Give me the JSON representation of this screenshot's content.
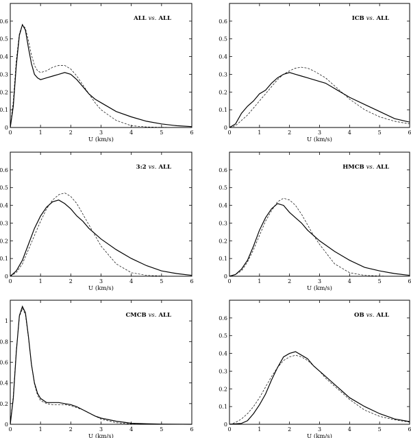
{
  "chart_data": [
    {
      "type": "line",
      "title_prefix": "ALL",
      "title_vs": "vs.",
      "title_suffix": "ALL",
      "xlabel": "U   (km/s)",
      "ylabel": "",
      "xlim": [
        0,
        6
      ],
      "ylim": [
        0,
        0.7
      ],
      "xticks": [
        "0",
        "1",
        "2",
        "3",
        "4",
        "5",
        "6"
      ],
      "yticks": [
        0,
        0.1,
        0.2,
        0.3,
        0.4,
        0.5,
        0.6
      ],
      "ytick_labels": [
        "0",
        "0.1",
        "0.2",
        "0.3",
        "0.4",
        "0.5",
        "0.6"
      ],
      "series": [
        {
          "style": "solid",
          "x": [
            0,
            0.1,
            0.2,
            0.3,
            0.4,
            0.5,
            0.6,
            0.7,
            0.8,
            0.9,
            1.0,
            1.2,
            1.4,
            1.6,
            1.8,
            2.0,
            2.2,
            2.4,
            2.6,
            2.8,
            3.0,
            3.5,
            4.0,
            4.5,
            5.0,
            5.5,
            6.0
          ],
          "y": [
            0,
            0.12,
            0.35,
            0.52,
            0.58,
            0.55,
            0.45,
            0.36,
            0.3,
            0.28,
            0.27,
            0.28,
            0.29,
            0.3,
            0.31,
            0.3,
            0.27,
            0.23,
            0.19,
            0.16,
            0.14,
            0.09,
            0.06,
            0.035,
            0.02,
            0.01,
            0.005
          ]
        },
        {
          "style": "dashed",
          "x": [
            0,
            0.1,
            0.2,
            0.3,
            0.4,
            0.5,
            0.6,
            0.7,
            0.8,
            0.9,
            1.0,
            1.2,
            1.4,
            1.6,
            1.8,
            2.0,
            2.2,
            2.4,
            2.6,
            2.8,
            3.0,
            3.5,
            4.0,
            4.5,
            5.0,
            5.5,
            6.0
          ],
          "y": [
            0,
            0.15,
            0.38,
            0.53,
            0.58,
            0.56,
            0.49,
            0.41,
            0.35,
            0.32,
            0.31,
            0.32,
            0.34,
            0.35,
            0.35,
            0.33,
            0.29,
            0.24,
            0.19,
            0.14,
            0.1,
            0.04,
            0.01,
            0.003,
            0.001,
            0,
            0
          ]
        }
      ]
    },
    {
      "type": "line",
      "title_prefix": "ICB",
      "title_vs": "vs.",
      "title_suffix": "ALL",
      "xlabel": "U   (km/s)",
      "ylabel": "",
      "xlim": [
        0,
        6
      ],
      "ylim": [
        0,
        0.7
      ],
      "xticks": [
        "0",
        "1",
        "2",
        "3",
        "4",
        "5",
        "6"
      ],
      "yticks": [
        0,
        0.1,
        0.2,
        0.3,
        0.4,
        0.5,
        0.6
      ],
      "ytick_labels": [
        "0",
        "0.1",
        "0.2",
        "0.3",
        "0.4",
        "0.5",
        "0.6"
      ],
      "series": [
        {
          "style": "solid",
          "x": [
            0,
            0.2,
            0.4,
            0.6,
            0.8,
            1.0,
            1.2,
            1.4,
            1.6,
            1.8,
            2.0,
            2.2,
            2.4,
            2.6,
            2.8,
            3.0,
            3.2,
            3.4,
            3.6,
            3.8,
            4.0,
            4.5,
            5.0,
            5.5,
            6.0
          ],
          "y": [
            0,
            0.02,
            0.08,
            0.12,
            0.15,
            0.19,
            0.21,
            0.25,
            0.28,
            0.3,
            0.31,
            0.3,
            0.29,
            0.28,
            0.27,
            0.26,
            0.25,
            0.23,
            0.21,
            0.19,
            0.17,
            0.13,
            0.09,
            0.05,
            0.03
          ]
        },
        {
          "style": "dashed",
          "x": [
            0,
            0.2,
            0.4,
            0.6,
            0.8,
            1.0,
            1.2,
            1.4,
            1.6,
            1.8,
            2.0,
            2.2,
            2.4,
            2.6,
            2.8,
            3.0,
            3.2,
            3.4,
            3.6,
            3.8,
            4.0,
            4.5,
            5.0,
            5.5,
            6.0
          ],
          "y": [
            0,
            0.01,
            0.04,
            0.07,
            0.11,
            0.15,
            0.19,
            0.23,
            0.27,
            0.3,
            0.32,
            0.335,
            0.34,
            0.335,
            0.32,
            0.3,
            0.28,
            0.25,
            0.22,
            0.19,
            0.16,
            0.1,
            0.06,
            0.035,
            0.02
          ]
        }
      ]
    },
    {
      "type": "line",
      "title_prefix": "3:2",
      "title_vs": "vs.",
      "title_suffix": "ALL",
      "xlabel": "U   (km/s)",
      "ylabel": "",
      "xlim": [
        0,
        6
      ],
      "ylim": [
        0,
        0.7
      ],
      "xticks": [
        "0",
        "1",
        "2",
        "3",
        "4",
        "5",
        "6"
      ],
      "yticks": [
        0,
        0.1,
        0.2,
        0.3,
        0.4,
        0.5,
        0.6
      ],
      "ytick_labels": [
        "0",
        "0.1",
        "0.2",
        "0.3",
        "0.4",
        "0.5",
        "0.6"
      ],
      "series": [
        {
          "style": "solid",
          "x": [
            0,
            0.2,
            0.4,
            0.6,
            0.8,
            1.0,
            1.2,
            1.4,
            1.6,
            1.8,
            2.0,
            2.2,
            2.4,
            2.6,
            2.8,
            3.0,
            3.5,
            4.0,
            4.5,
            5.0,
            5.5,
            6.0
          ],
          "y": [
            0,
            0.03,
            0.09,
            0.18,
            0.27,
            0.34,
            0.39,
            0.42,
            0.43,
            0.41,
            0.38,
            0.34,
            0.31,
            0.27,
            0.24,
            0.21,
            0.15,
            0.1,
            0.06,
            0.03,
            0.015,
            0.005
          ]
        },
        {
          "style": "dashed",
          "x": [
            0,
            0.2,
            0.4,
            0.6,
            0.8,
            1.0,
            1.2,
            1.4,
            1.6,
            1.8,
            2.0,
            2.2,
            2.4,
            2.6,
            2.8,
            3.0,
            3.5,
            4.0,
            4.5,
            5.0,
            5.5,
            6.0
          ],
          "y": [
            0,
            0.02,
            0.07,
            0.15,
            0.23,
            0.31,
            0.38,
            0.43,
            0.46,
            0.47,
            0.45,
            0.41,
            0.35,
            0.29,
            0.23,
            0.17,
            0.07,
            0.02,
            0.005,
            0.001,
            0,
            0
          ]
        }
      ]
    },
    {
      "type": "line",
      "title_prefix": "HMCB",
      "title_vs": "vs.",
      "title_suffix": "ALL",
      "xlabel": "U   (km/s)",
      "ylabel": "",
      "xlim": [
        0,
        6
      ],
      "ylim": [
        0,
        0.7
      ],
      "xticks": [
        "0",
        "1",
        "2",
        "3",
        "4",
        "5",
        "6"
      ],
      "yticks": [
        0,
        0.1,
        0.2,
        0.3,
        0.4,
        0.5,
        0.6
      ],
      "ytick_labels": [
        "0",
        "0.1",
        "0.2",
        "0.3",
        "0.4",
        "0.5",
        "0.6"
      ],
      "series": [
        {
          "style": "solid",
          "x": [
            0,
            0.2,
            0.4,
            0.6,
            0.8,
            1.0,
            1.2,
            1.4,
            1.6,
            1.8,
            2.0,
            2.2,
            2.4,
            2.6,
            2.8,
            3.0,
            3.5,
            4.0,
            4.5,
            5.0,
            5.5,
            6.0
          ],
          "y": [
            0,
            0.01,
            0.04,
            0.09,
            0.17,
            0.26,
            0.33,
            0.38,
            0.41,
            0.4,
            0.36,
            0.33,
            0.3,
            0.26,
            0.23,
            0.2,
            0.14,
            0.09,
            0.05,
            0.03,
            0.015,
            0.005
          ]
        },
        {
          "style": "dashed",
          "x": [
            0,
            0.2,
            0.4,
            0.6,
            0.8,
            1.0,
            1.2,
            1.4,
            1.6,
            1.8,
            2.0,
            2.2,
            2.4,
            2.6,
            2.8,
            3.0,
            3.5,
            4.0,
            4.5,
            5.0,
            5.5,
            6.0
          ],
          "y": [
            0,
            0.01,
            0.03,
            0.08,
            0.15,
            0.23,
            0.31,
            0.37,
            0.42,
            0.44,
            0.43,
            0.4,
            0.35,
            0.29,
            0.23,
            0.18,
            0.07,
            0.02,
            0.005,
            0.001,
            0,
            0
          ]
        }
      ]
    },
    {
      "type": "line",
      "title_prefix": "CMCB",
      "title_vs": "vs.",
      "title_suffix": "ALL",
      "xlabel": "U   (km/s)",
      "ylabel": "",
      "xlim": [
        0,
        6
      ],
      "ylim": [
        0,
        1.2
      ],
      "xticks": [
        "0",
        "1",
        "2",
        "3",
        "4",
        "5",
        "6"
      ],
      "yticks": [
        0,
        0.2,
        0.4,
        0.6,
        0.8,
        1.0
      ],
      "ytick_labels": [
        "0",
        "0.2",
        "0.4",
        "0.6",
        "0.8",
        "1"
      ],
      "series": [
        {
          "style": "solid",
          "x": [
            0,
            0.1,
            0.2,
            0.3,
            0.4,
            0.5,
            0.6,
            0.7,
            0.8,
            0.9,
            1.0,
            1.2,
            1.4,
            1.6,
            1.8,
            2.0,
            2.2,
            2.4,
            2.6,
            2.8,
            3.0,
            3.5,
            4.0,
            4.5,
            5.0,
            6.0
          ],
          "y": [
            0,
            0.25,
            0.7,
            1.05,
            1.14,
            1.08,
            0.85,
            0.58,
            0.4,
            0.3,
            0.25,
            0.21,
            0.21,
            0.21,
            0.2,
            0.19,
            0.17,
            0.14,
            0.11,
            0.08,
            0.06,
            0.03,
            0.01,
            0.005,
            0.002,
            0
          ]
        },
        {
          "style": "dashed",
          "x": [
            0,
            0.1,
            0.2,
            0.3,
            0.4,
            0.5,
            0.6,
            0.7,
            0.8,
            0.9,
            1.0,
            1.2,
            1.4,
            1.6,
            1.8,
            2.0,
            2.2,
            2.4,
            2.6,
            2.8,
            3.0,
            3.5,
            4.0,
            4.5,
            5.0,
            6.0
          ],
          "y": [
            0,
            0.28,
            0.72,
            1.04,
            1.12,
            1.06,
            0.84,
            0.58,
            0.39,
            0.28,
            0.23,
            0.2,
            0.19,
            0.19,
            0.19,
            0.18,
            0.16,
            0.14,
            0.11,
            0.08,
            0.05,
            0.015,
            0.003,
            0,
            0,
            0
          ]
        }
      ]
    },
    {
      "type": "line",
      "title_prefix": "OB",
      "title_vs": "vs.",
      "title_suffix": "ALL",
      "xlabel": "U   (km/s)",
      "ylabel": "",
      "xlim": [
        0,
        6
      ],
      "ylim": [
        0,
        0.7
      ],
      "xticks": [
        "0",
        "1",
        "2",
        "3",
        "4",
        "5",
        "6"
      ],
      "yticks": [
        0,
        0.1,
        0.2,
        0.3,
        0.4,
        0.5,
        0.6
      ],
      "ytick_labels": [
        "0",
        "0.1",
        "0.2",
        "0.3",
        "0.4",
        "0.5",
        "0.6"
      ],
      "series": [
        {
          "style": "solid",
          "x": [
            0,
            0.4,
            0.6,
            0.8,
            1.0,
            1.2,
            1.4,
            1.6,
            1.8,
            2.0,
            2.2,
            2.4,
            2.6,
            2.8,
            3.0,
            3.2,
            3.4,
            3.6,
            3.8,
            4.0,
            4.5,
            5.0,
            5.5,
            6.0
          ],
          "y": [
            0,
            0.005,
            0.02,
            0.06,
            0.11,
            0.17,
            0.25,
            0.32,
            0.38,
            0.4,
            0.41,
            0.39,
            0.37,
            0.33,
            0.3,
            0.27,
            0.24,
            0.21,
            0.18,
            0.15,
            0.1,
            0.06,
            0.03,
            0.015
          ]
        },
        {
          "style": "dashed",
          "x": [
            0,
            0.2,
            0.4,
            0.6,
            0.8,
            1.0,
            1.2,
            1.4,
            1.6,
            1.8,
            2.0,
            2.2,
            2.4,
            2.6,
            2.8,
            3.0,
            3.2,
            3.4,
            3.6,
            3.8,
            4.0,
            4.5,
            5.0,
            5.5,
            6.0
          ],
          "y": [
            0,
            0.01,
            0.03,
            0.06,
            0.1,
            0.15,
            0.21,
            0.27,
            0.32,
            0.36,
            0.38,
            0.39,
            0.38,
            0.36,
            0.33,
            0.3,
            0.26,
            0.23,
            0.2,
            0.17,
            0.14,
            0.08,
            0.045,
            0.025,
            0.012
          ]
        }
      ]
    }
  ]
}
